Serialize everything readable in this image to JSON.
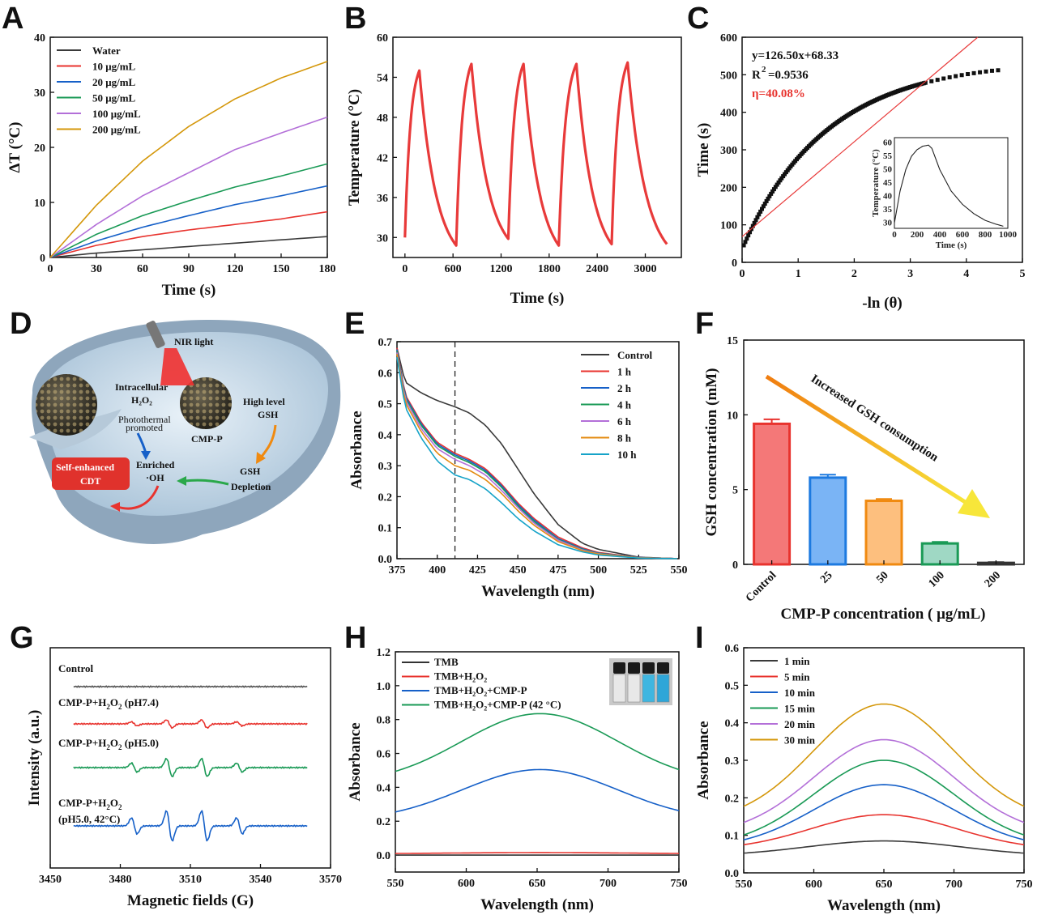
{
  "panels": {
    "A": {
      "label": "A"
    },
    "B": {
      "label": "B"
    },
    "C": {
      "label": "C"
    },
    "D": {
      "label": "D"
    },
    "E": {
      "label": "E"
    },
    "F": {
      "label": "F"
    },
    "G": {
      "label": "G"
    },
    "H": {
      "label": "H"
    },
    "I": {
      "label": "I"
    }
  },
  "chart_data": [
    {
      "id": "A",
      "type": "line",
      "xlabel": "Time (s)",
      "ylabel": "ΔT (°C)",
      "xlim": [
        0,
        180
      ],
      "ylim": [
        0,
        40
      ],
      "xticks": [
        0,
        30,
        60,
        90,
        120,
        150,
        180
      ],
      "yticks": [
        0,
        10,
        20,
        30,
        40
      ],
      "x": [
        0,
        30,
        60,
        90,
        120,
        150,
        180
      ],
      "series": [
        {
          "name": "Water",
          "color": "#3a3a3a",
          "values": [
            0,
            0.8,
            1.4,
            2.0,
            2.6,
            3.2,
            3.8
          ]
        },
        {
          "name": "10 μg/mL",
          "color": "#e8332e",
          "values": [
            0,
            2.2,
            3.8,
            5.0,
            6.0,
            7.0,
            8.3
          ]
        },
        {
          "name": "20 μg/mL",
          "color": "#1660c8",
          "values": [
            0,
            3.0,
            5.5,
            7.6,
            9.6,
            11.2,
            13.0
          ]
        },
        {
          "name": "50 μg/mL",
          "color": "#1a9a56",
          "values": [
            0,
            4.2,
            7.6,
            10.3,
            12.8,
            14.8,
            17.0
          ]
        },
        {
          "name": "100 μg/mL",
          "color": "#b36fd8",
          "values": [
            0,
            6.0,
            11.2,
            15.4,
            19.6,
            22.6,
            25.5
          ]
        },
        {
          "name": "200 μg/mL",
          "color": "#d4970a",
          "values": [
            0,
            9.5,
            17.5,
            23.8,
            28.8,
            32.6,
            35.6
          ]
        }
      ]
    },
    {
      "id": "B",
      "type": "line",
      "xlabel": "Time (s)",
      "ylabel": "Temperature (°C)",
      "xlim": [
        -150,
        3450
      ],
      "ylim": [
        27,
        60
      ],
      "xticks": [
        0,
        600,
        1200,
        1800,
        2400,
        3000
      ],
      "yticks": [
        30,
        36,
        42,
        48,
        54,
        60
      ],
      "cycles": [
        {
          "start": 0,
          "peak_t": 180,
          "peak": 55.0,
          "min_t": 640,
          "min": 28.8
        },
        {
          "start": 640,
          "peak_t": 830,
          "peak": 56.0,
          "min_t": 1290,
          "min": 29.8
        },
        {
          "start": 1290,
          "peak_t": 1480,
          "peak": 56.0,
          "min_t": 1920,
          "min": 28.8
        },
        {
          "start": 1920,
          "peak_t": 2140,
          "peak": 56.0,
          "min_t": 2580,
          "min": 29.0
        },
        {
          "start": 2580,
          "peak_t": 2780,
          "peak": 56.2,
          "min_t": 3270,
          "min": 29.0
        }
      ],
      "start_temp": 30.0,
      "color": "#e83a3a"
    },
    {
      "id": "C",
      "type": "scatter",
      "xlabel": "-ln (θ)",
      "ylabel": "Time (s)",
      "xlim": [
        0,
        5
      ],
      "ylim": [
        0,
        600
      ],
      "xticks": [
        0,
        1,
        2,
        3,
        4,
        5
      ],
      "yticks": [
        0,
        100,
        200,
        300,
        400,
        500,
        600
      ],
      "fit": {
        "slope": 126.5,
        "intercept": 68.33,
        "color": "#e83a3a"
      },
      "annotations": {
        "equation": "y=126.50x+68.33",
        "r2_prefix": "R",
        "r2_sup": "2",
        "r2_value": "=0.9536",
        "eta": "η=40.08%"
      },
      "inset": {
        "xlabel": "Time (s)",
        "ylabel": "Temperature (°C)",
        "xlim": [
          0,
          1000
        ],
        "ylim": [
          28,
          62
        ],
        "xticks": [
          0,
          200,
          400,
          600,
          800,
          1000
        ],
        "yticks": [
          30,
          35,
          40,
          45,
          50,
          55,
          60
        ],
        "points": [
          [
            0,
            30
          ],
          [
            50,
            42
          ],
          [
            100,
            50
          ],
          [
            150,
            55
          ],
          [
            200,
            57.5
          ],
          [
            250,
            58.8
          ],
          [
            300,
            59.2
          ],
          [
            330,
            58.0
          ],
          [
            400,
            50
          ],
          [
            500,
            42
          ],
          [
            600,
            37
          ],
          [
            700,
            33.5
          ],
          [
            800,
            31
          ],
          [
            900,
            29.5
          ],
          [
            960,
            28.8
          ]
        ]
      }
    },
    {
      "id": "E",
      "type": "line",
      "xlabel": "Wavelength (nm)",
      "ylabel": "Absorbance",
      "xlim": [
        375,
        550
      ],
      "ylim": [
        0,
        0.7
      ],
      "xticks": [
        375,
        400,
        425,
        450,
        475,
        500,
        525,
        550
      ],
      "yticks": [
        0.0,
        0.1,
        0.2,
        0.3,
        0.4,
        0.5,
        0.6,
        0.7
      ],
      "marker_x": 411,
      "x": [
        375,
        380,
        390,
        400,
        411,
        420,
        430,
        440,
        450,
        460,
        475,
        490,
        500,
        525,
        550
      ],
      "series": [
        {
          "name": "Control",
          "color": "#3a3a3a",
          "values": [
            0.68,
            0.57,
            0.535,
            0.51,
            0.49,
            0.47,
            0.43,
            0.37,
            0.29,
            0.21,
            0.11,
            0.05,
            0.03,
            0.005,
            0.0
          ]
        },
        {
          "name": "1 h",
          "color": "#e8332e",
          "values": [
            0.68,
            0.53,
            0.44,
            0.375,
            0.34,
            0.32,
            0.29,
            0.24,
            0.18,
            0.13,
            0.07,
            0.035,
            0.02,
            0.004,
            0.0
          ]
        },
        {
          "name": "2 h",
          "color": "#1660c8",
          "values": [
            0.675,
            0.525,
            0.435,
            0.37,
            0.335,
            0.315,
            0.285,
            0.235,
            0.175,
            0.125,
            0.065,
            0.032,
            0.018,
            0.004,
            0.0
          ]
        },
        {
          "name": "4 h",
          "color": "#1a9a56",
          "values": [
            0.67,
            0.52,
            0.43,
            0.365,
            0.33,
            0.31,
            0.28,
            0.23,
            0.17,
            0.12,
            0.062,
            0.03,
            0.017,
            0.003,
            0.0
          ]
        },
        {
          "name": "6 h",
          "color": "#b36fd8",
          "values": [
            0.665,
            0.515,
            0.42,
            0.355,
            0.32,
            0.3,
            0.27,
            0.22,
            0.165,
            0.115,
            0.06,
            0.028,
            0.016,
            0.003,
            0.0
          ]
        },
        {
          "name": "8 h",
          "color": "#e48b12",
          "values": [
            0.66,
            0.505,
            0.41,
            0.34,
            0.3,
            0.285,
            0.255,
            0.21,
            0.155,
            0.108,
            0.055,
            0.026,
            0.015,
            0.003,
            0.0
          ]
        },
        {
          "name": "10 h",
          "color": "#16a3c8",
          "values": [
            0.65,
            0.49,
            0.39,
            0.315,
            0.27,
            0.255,
            0.225,
            0.18,
            0.13,
            0.09,
            0.045,
            0.022,
            0.012,
            0.002,
            0.0
          ]
        }
      ]
    },
    {
      "id": "F",
      "type": "bar",
      "xlabel": "CMP-P concentration ( μg/mL)",
      "ylabel": "GSH concentration (mM)",
      "ylim": [
        0,
        15
      ],
      "yticks": [
        0,
        5,
        10,
        15
      ],
      "categories": [
        "Control",
        "25",
        "50",
        "100",
        "200"
      ],
      "values": [
        9.4,
        5.8,
        4.25,
        1.4,
        0.1
      ],
      "errors": [
        0.3,
        0.2,
        0.12,
        0.1,
        0.05
      ],
      "fill_colors": [
        "#f47878",
        "#7ab4f5",
        "#fdbf7e",
        "#9fd8c4",
        "#f0f0f0"
      ],
      "edge_colors": [
        "#e8332e",
        "#1d7ae0",
        "#f08a10",
        "#1a9a56",
        "#333333"
      ],
      "annotation": "Increased GSH consumption"
    },
    {
      "id": "G",
      "type": "line",
      "xlabel": "Magnetic fields (G)",
      "ylabel": "Intensity (a.u.)",
      "xlim": [
        3450,
        3570
      ],
      "xticks": [
        3450,
        3480,
        3510,
        3540,
        3570
      ],
      "line_positions": [
        3486,
        3501,
        3516,
        3531
      ],
      "series": [
        {
          "name": "Control",
          "color": "#555555",
          "amps": [
            0,
            0,
            0,
            0
          ]
        },
        {
          "name": "CMP-P+H2O2 (pH7.4)",
          "label_main": "CMP-P+H",
          "label_sub": "2",
          "label_rest": "O",
          "label_sub2": "2",
          "label_tail": " (pH7.4)",
          "color": "#e8332e",
          "amps": [
            4,
            8,
            8,
            4
          ]
        },
        {
          "name": "CMP-P+H2O2 (pH5.0)",
          "label_main": "CMP-P+H",
          "label_sub": "2",
          "label_rest": "O",
          "label_sub2": "2",
          "label_tail": " (pH5.0)",
          "color": "#1a9a56",
          "amps": [
            9,
            18,
            18,
            9
          ]
        },
        {
          "name": "CMP-P+H2O2 (pH5.0, 42°C)",
          "label_main": "CMP-P+H",
          "label_sub": "2",
          "label_rest": "O",
          "label_sub2": "2",
          "label_tail": "",
          "label_line2": "(pH5.0, 42°C)",
          "color": "#1660c8",
          "amps": [
            16,
            30,
            30,
            16
          ]
        }
      ]
    },
    {
      "id": "H",
      "type": "line",
      "xlabel": "Wavelength (nm)",
      "ylabel": "Absorbance",
      "xlim": [
        550,
        750
      ],
      "ylim": [
        -0.1,
        1.2
      ],
      "xticks": [
        550,
        600,
        650,
        700,
        750
      ],
      "yticks": [
        0.0,
        0.2,
        0.4,
        0.6,
        0.8,
        1.0,
        1.2
      ],
      "series": [
        {
          "name": "TMB",
          "color": "#333333",
          "base": 0.0,
          "peak": 0.0,
          "center": 652,
          "sigma": 60
        },
        {
          "name": "TMB+H2O2",
          "color": "#e8332e",
          "base": 0.008,
          "peak": 0.015,
          "center": 652,
          "sigma": 60
        },
        {
          "name": "TMB+H2O2+CMP-P",
          "color": "#1660c8",
          "base": 0.2,
          "peak": 0.505,
          "center": 652,
          "sigma": 55
        },
        {
          "name": "TMB+H2O2+CMP-P (42 °C)",
          "color": "#1a9a56",
          "base": 0.42,
          "peak": 0.835,
          "center": 652,
          "sigma": 55
        }
      ],
      "legend": [
        {
          "main": "TMB"
        },
        {
          "main": "TMB+H",
          "sub": "2",
          "mid": "O",
          "sub2": "2",
          "tail": ""
        },
        {
          "main": "TMB+H",
          "sub": "2",
          "mid": "O",
          "sub2": "2",
          "tail": "+CMP-P"
        },
        {
          "main": "TMB+H",
          "sub": "2",
          "mid": "O",
          "sub2": "2",
          "tail": "+CMP-P (42 °C)"
        }
      ]
    },
    {
      "id": "I",
      "type": "line",
      "xlabel": "Wavelength (nm)",
      "ylabel": "Absorbance",
      "xlim": [
        550,
        750
      ],
      "ylim": [
        0,
        0.6
      ],
      "xticks": [
        550,
        600,
        650,
        700,
        750
      ],
      "yticks": [
        0.0,
        0.1,
        0.2,
        0.3,
        0.4,
        0.5,
        0.6
      ],
      "series": [
        {
          "name": "1 min",
          "color": "#3a3a3a",
          "base": 0.045,
          "peak": 0.085,
          "center": 650,
          "sigma": 55
        },
        {
          "name": "5 min",
          "color": "#e8332e",
          "base": 0.06,
          "peak": 0.155,
          "center": 650,
          "sigma": 52
        },
        {
          "name": "10 min",
          "color": "#1660c8",
          "base": 0.065,
          "peak": 0.235,
          "center": 650,
          "sigma": 50
        },
        {
          "name": "15 min",
          "color": "#1a9a56",
          "base": 0.07,
          "peak": 0.3,
          "center": 650,
          "sigma": 50
        },
        {
          "name": "20 min",
          "color": "#b36fd8",
          "base": 0.1,
          "peak": 0.355,
          "center": 650,
          "sigma": 50
        },
        {
          "name": "30 min",
          "color": "#d4970a",
          "base": 0.135,
          "peak": 0.45,
          "center": 650,
          "sigma": 50
        }
      ]
    }
  ],
  "schematic": {
    "nir": "NIR light",
    "intracellular": "Intracellular",
    "h2o2": "H₂O₂",
    "photothermal": "Photothermal",
    "promoted": "promoted",
    "high_level": "High level",
    "gsh": "GSH",
    "cmpp": "CMP-P",
    "enriched": "Enriched",
    "oh": "·OH",
    "gsh_dep1": "GSH",
    "gsh_dep2": "Depletion",
    "self1": "Self-enhanced",
    "self2": "CDT"
  }
}
